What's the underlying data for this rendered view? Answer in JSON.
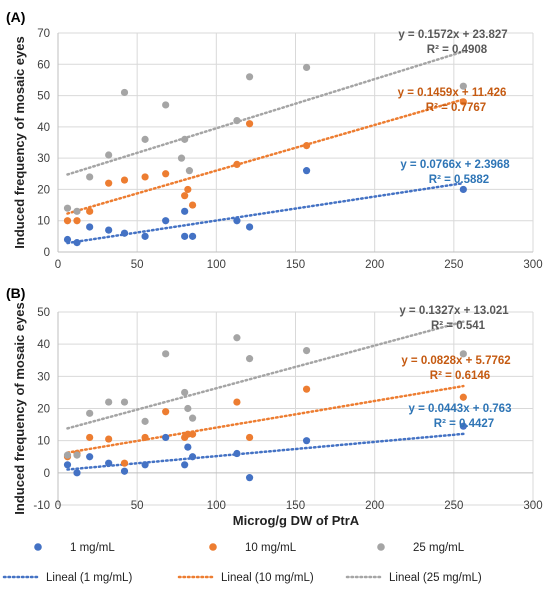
{
  "colors": {
    "series_1": "#4472C4",
    "series_10": "#ED7D31",
    "series_25": "#A5A5A5",
    "eq_1": "#2E75B6",
    "eq_10": "#C55A11",
    "eq_25": "#595959",
    "grid": "#D9D9D9",
    "axis_text": "#404040"
  },
  "legend": {
    "items": [
      {
        "label": "1 mg/mL",
        "kind": "marker",
        "color_key": "series_1"
      },
      {
        "label": "10 mg/mL",
        "kind": "marker",
        "color_key": "series_10"
      },
      {
        "label": "25 mg/mL",
        "kind": "marker",
        "color_key": "series_25"
      },
      {
        "label": "Lineal (1 mg/mL)",
        "kind": "line",
        "color_key": "series_1"
      },
      {
        "label": "Lineal (10 mg/mL)",
        "kind": "line",
        "color_key": "series_10"
      },
      {
        "label": "Lineal (25 mg/mL)",
        "kind": "line",
        "color_key": "series_25"
      }
    ]
  },
  "chart_data": [
    {
      "type": "scatter",
      "panel_label": "(A)",
      "xlabel": "",
      "ylabel": "Induced frequency of mosaic eyes",
      "xlim": [
        0,
        300
      ],
      "ylim": [
        0,
        70
      ],
      "xticks": [
        0,
        50,
        100,
        150,
        200,
        250,
        300
      ],
      "yticks": [
        0,
        10,
        20,
        30,
        40,
        50,
        60,
        70
      ],
      "grid": true,
      "series": [
        {
          "name": "1 mg/mL",
          "color_key": "series_1",
          "points": [
            [
              6,
              4
            ],
            [
              12,
              3
            ],
            [
              20,
              8
            ],
            [
              32,
              7
            ],
            [
              42,
              6
            ],
            [
              55,
              5
            ],
            [
              68,
              10
            ],
            [
              80,
              13
            ],
            [
              80,
              5
            ],
            [
              85,
              5
            ],
            [
              113,
              10
            ],
            [
              121,
              8
            ],
            [
              157,
              26
            ],
            [
              256,
              20
            ]
          ],
          "trend": {
            "slope": 0.0766,
            "intercept": 2.3968,
            "equation": "y = 0.0766x + 2.3968",
            "r2": "R² = 0.5882"
          }
        },
        {
          "name": "10 mg/mL",
          "color_key": "series_10",
          "points": [
            [
              6,
              10
            ],
            [
              12,
              10
            ],
            [
              20,
              13
            ],
            [
              32,
              22
            ],
            [
              42,
              23
            ],
            [
              55,
              24
            ],
            [
              68,
              25
            ],
            [
              80,
              18
            ],
            [
              82,
              20
            ],
            [
              85,
              15
            ],
            [
              113,
              28
            ],
            [
              121,
              41
            ],
            [
              157,
              34
            ],
            [
              256,
              48
            ]
          ],
          "trend": {
            "slope": 0.1459,
            "intercept": 11.426,
            "equation": "y = 0.1459x + 11.426",
            "r2": "R² = 0.7767"
          }
        },
        {
          "name": "25 mg/mL",
          "color_key": "series_25",
          "points": [
            [
              6,
              14
            ],
            [
              12,
              13
            ],
            [
              20,
              24
            ],
            [
              32,
              31
            ],
            [
              42,
              51
            ],
            [
              55,
              36
            ],
            [
              68,
              47
            ],
            [
              78,
              30
            ],
            [
              80,
              36
            ],
            [
              83,
              26
            ],
            [
              113,
              42
            ],
            [
              121,
              56
            ],
            [
              157,
              59
            ],
            [
              256,
              53
            ]
          ],
          "trend": {
            "slope": 0.1572,
            "intercept": 23.827,
            "equation": "y = 0.1572x + 23.827",
            "r2": "R² = 0.4908"
          }
        }
      ]
    },
    {
      "type": "scatter",
      "panel_label": "(B)",
      "xlabel": "Microg/g DW of PtrA",
      "ylabel": "Induced frequency of mosaic eyes",
      "xlim": [
        0,
        300
      ],
      "ylim": [
        -10,
        50
      ],
      "xticks": [
        0,
        50,
        100,
        150,
        200,
        250,
        300
      ],
      "yticks": [
        -10,
        0,
        10,
        20,
        30,
        40,
        50
      ],
      "grid": true,
      "series": [
        {
          "name": "1 mg/mL",
          "color_key": "series_1",
          "points": [
            [
              6,
              2.5
            ],
            [
              12,
              0
            ],
            [
              20,
              5
            ],
            [
              32,
              3
            ],
            [
              42,
              0.5
            ],
            [
              55,
              2.5
            ],
            [
              68,
              11
            ],
            [
              80,
              2.5
            ],
            [
              82,
              8
            ],
            [
              85,
              5
            ],
            [
              113,
              6
            ],
            [
              121,
              -1.5
            ],
            [
              157,
              10
            ],
            [
              256,
              14.5
            ]
          ],
          "trend": {
            "slope": 0.0443,
            "intercept": 0.763,
            "equation": "y = 0.0443x + 0.763",
            "r2": "R² = 0.4427"
          }
        },
        {
          "name": "10 mg/mL",
          "color_key": "series_10",
          "points": [
            [
              6,
              5
            ],
            [
              12,
              6
            ],
            [
              20,
              11
            ],
            [
              32,
              10.5
            ],
            [
              42,
              3
            ],
            [
              55,
              11
            ],
            [
              68,
              19
            ],
            [
              80,
              11
            ],
            [
              82,
              12
            ],
            [
              85,
              12
            ],
            [
              113,
              22
            ],
            [
              121,
              11
            ],
            [
              157,
              26
            ],
            [
              256,
              23.5
            ]
          ],
          "trend": {
            "slope": 0.0828,
            "intercept": 5.7762,
            "equation": "y = 0.0828x + 5.7762",
            "r2": "R² = 0.6146"
          }
        },
        {
          "name": "25 mg/mL",
          "color_key": "series_25",
          "points": [
            [
              6,
              5.5
            ],
            [
              12,
              5.5
            ],
            [
              20,
              18.5
            ],
            [
              32,
              22
            ],
            [
              42,
              22
            ],
            [
              55,
              16
            ],
            [
              68,
              37
            ],
            [
              80,
              25
            ],
            [
              82,
              20
            ],
            [
              85,
              17
            ],
            [
              113,
              42
            ],
            [
              121,
              35.5
            ],
            [
              157,
              38
            ],
            [
              256,
              37
            ]
          ],
          "trend": {
            "slope": 0.1327,
            "intercept": 13.021,
            "equation": "y = 0.1327x + 13.021",
            "r2": "R² = 0.541"
          }
        }
      ]
    }
  ]
}
